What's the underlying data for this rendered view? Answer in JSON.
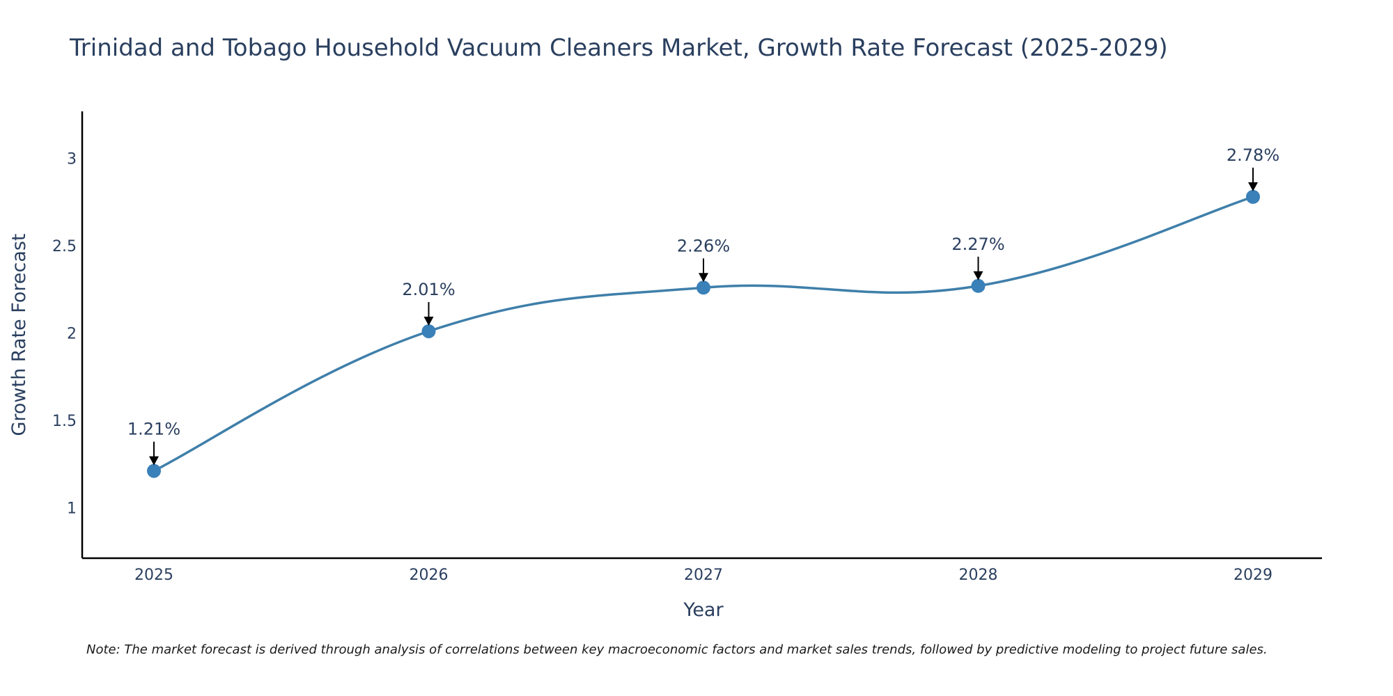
{
  "chart_data": {
    "type": "line",
    "title": "Trinidad and Tobago Household Vacuum Cleaners Market, Growth Rate Forecast (2025-2029)",
    "xlabel": "Year",
    "ylabel": "Growth Rate Forecast",
    "categories": [
      "2025",
      "2026",
      "2027",
      "2028",
      "2029"
    ],
    "values": [
      1.21,
      2.01,
      2.26,
      2.27,
      2.78
    ],
    "data_labels": [
      "1.21%",
      "2.01%",
      "2.26%",
      "2.27%",
      "2.78%"
    ],
    "y_ticks": [
      1,
      1.5,
      2,
      2.5,
      3
    ],
    "y_tick_labels": [
      "1",
      "1.5",
      "2",
      "2.5",
      "3"
    ],
    "ylim": [
      0.71,
      3.27
    ],
    "grid": false,
    "line_color": "#3f7faa",
    "marker_color": "#3a80b9",
    "note": "Note: The market forecast is derived through analysis of correlations between key macroeconomic factors and market sales trends, followed by predictive modeling to project future sales."
  }
}
